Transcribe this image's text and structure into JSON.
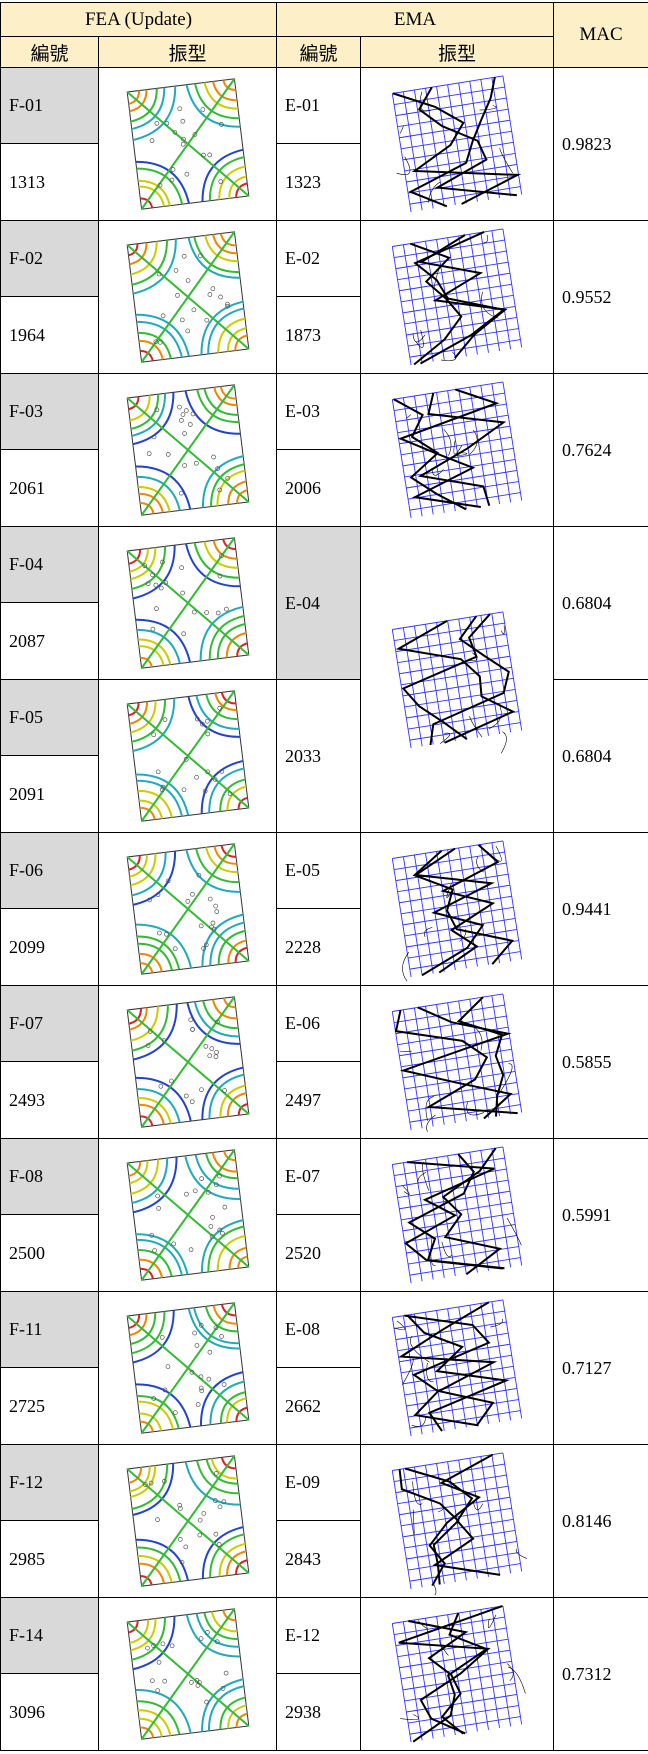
{
  "header": {
    "fea": "FEA (Update)",
    "ema": "EMA",
    "mac": "MAC",
    "fea_cols": [
      "編號",
      "振型"
    ],
    "ema_cols": [
      "編號",
      "振型"
    ]
  },
  "fea": [
    {
      "id": "F-01",
      "freq": 1313
    },
    {
      "id": "F-02",
      "freq": 1964
    },
    {
      "id": "F-03",
      "freq": 2061
    },
    {
      "id": "F-04",
      "freq": 2087
    },
    {
      "id": "F-05",
      "freq": 2091
    },
    {
      "id": "F-06",
      "freq": 2099
    },
    {
      "id": "F-07",
      "freq": 2493
    },
    {
      "id": "F-08",
      "freq": 2500
    },
    {
      "id": "F-11",
      "freq": 2725
    },
    {
      "id": "F-12",
      "freq": 2985
    },
    {
      "id": "F-14",
      "freq": 3096
    }
  ],
  "ema": [
    {
      "id": "E-01",
      "freq": 1323
    },
    {
      "id": "E-02",
      "freq": 1873
    },
    {
      "id": "E-03",
      "freq": 2006
    },
    {
      "id": "E-04",
      "freq": 2033
    },
    {
      "id": "E-05",
      "freq": 2228
    },
    {
      "id": "E-06",
      "freq": 2497
    },
    {
      "id": "E-07",
      "freq": 2520
    },
    {
      "id": "E-08",
      "freq": 2662
    },
    {
      "id": "E-09",
      "freq": 2843
    },
    {
      "id": "E-12",
      "freq": 2938
    }
  ],
  "mac": [
    0.9823,
    0.9552,
    0.7624,
    0.6804,
    0.6804,
    0.9441,
    0.5855,
    0.5991,
    0.7127,
    0.8146,
    0.7312
  ]
}
